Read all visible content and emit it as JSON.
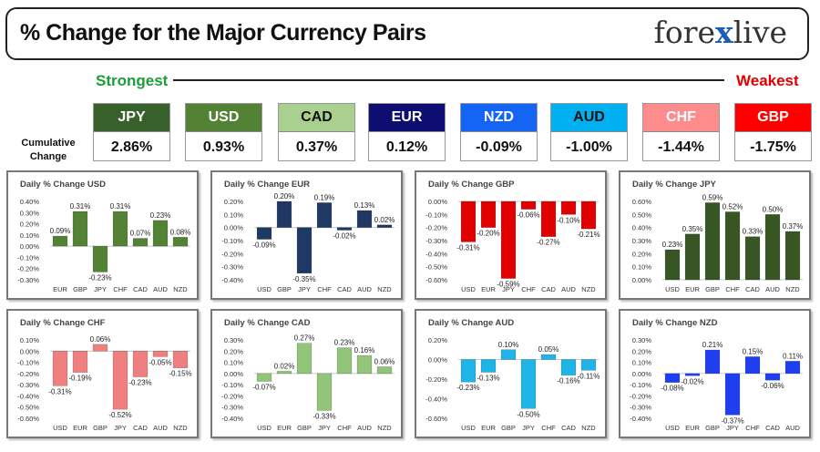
{
  "header": {
    "title": "% Change for the Major Currency Pairs",
    "logo_left": "fore",
    "logo_x": "x",
    "logo_right": "live"
  },
  "labels": {
    "strongest": "Strongest",
    "weakest": "Weakest",
    "cumulative": "Cumulative Change"
  },
  "currencies": [
    {
      "code": "JPY",
      "value": "2.86%",
      "bg": "#37602b",
      "fg": "#ffffff"
    },
    {
      "code": "USD",
      "value": "0.93%",
      "bg": "#548235",
      "fg": "#ffffff"
    },
    {
      "code": "CAD",
      "value": "0.37%",
      "bg": "#a9d08e",
      "fg": "#111111"
    },
    {
      "code": "EUR",
      "value": "0.12%",
      "bg": "#0d0d72",
      "fg": "#ffffff"
    },
    {
      "code": "NZD",
      "value": "-0.09%",
      "bg": "#1565f5",
      "fg": "#ffffff"
    },
    {
      "code": "AUD",
      "value": "-1.00%",
      "bg": "#00b0f0",
      "fg": "#111111"
    },
    {
      "code": "CHF",
      "value": "-1.44%",
      "bg": "#ff8c8c",
      "fg": "#ffffff"
    },
    {
      "code": "GBP",
      "value": "-1.75%",
      "bg": "#ff0000",
      "fg": "#ffffff"
    }
  ],
  "chart_data": [
    {
      "type": "bar",
      "title": "Daily % Change USD",
      "color": "#548235",
      "categories": [
        "EUR",
        "GBP",
        "JPY",
        "CHF",
        "CAD",
        "AUD",
        "NZD"
      ],
      "values": [
        0.09,
        0.31,
        -0.23,
        0.31,
        0.07,
        0.23,
        0.08
      ],
      "labels": [
        "0.09%",
        "0.31%",
        "-0.23%",
        "0.31%",
        "0.07%",
        "0.23%",
        "0.08%"
      ],
      "yticks": [
        0.4,
        0.3,
        0.2,
        0.1,
        0,
        -0.1,
        -0.2,
        -0.3
      ],
      "ytick_labels": [
        "0.40%",
        "0.30%",
        "0.20%",
        "0.10%",
        "0.00%",
        "-0.10%",
        "-0.20%",
        "-0.30%"
      ],
      "ylim": [
        -0.3,
        0.4
      ]
    },
    {
      "type": "bar",
      "title": "Daily % Change EUR",
      "color": "#1f3864",
      "categories": [
        "USD",
        "GBP",
        "JPY",
        "CHF",
        "CAD",
        "AUD",
        "NZD"
      ],
      "values": [
        -0.09,
        0.2,
        -0.35,
        0.19,
        -0.02,
        0.13,
        0.02
      ],
      "labels": [
        "-0.09%",
        "0.20%",
        "-0.35%",
        "0.19%",
        "-0.02%",
        "0.13%",
        "0.02%"
      ],
      "yticks": [
        0.2,
        0.1,
        0,
        -0.1,
        -0.2,
        -0.3,
        -0.4
      ],
      "ytick_labels": [
        "0.20%",
        "0.10%",
        "0.00%",
        "-0.10%",
        "-0.20%",
        "-0.30%",
        "-0.40%"
      ],
      "ylim": [
        -0.4,
        0.2
      ]
    },
    {
      "type": "bar",
      "title": "Daily % Change GBP",
      "color": "#e00000",
      "categories": [
        "USD",
        "EUR",
        "JPY",
        "CHF",
        "CAD",
        "AUD",
        "NZD"
      ],
      "values": [
        -0.31,
        -0.2,
        -0.59,
        -0.06,
        -0.27,
        -0.1,
        -0.21
      ],
      "labels": [
        "-0.31%",
        "-0.20%",
        "-0.59%",
        "-0.06%",
        "-0.27%",
        "-0.10%",
        "-0.21%"
      ],
      "yticks": [
        0,
        -0.1,
        -0.2,
        -0.3,
        -0.4,
        -0.5,
        -0.6
      ],
      "ytick_labels": [
        "0.00%",
        "-0.10%",
        "-0.20%",
        "-0.30%",
        "-0.40%",
        "-0.50%",
        "-0.60%"
      ],
      "ylim": [
        -0.6,
        0
      ]
    },
    {
      "type": "bar",
      "title": "Daily % Change JPY",
      "color": "#375623",
      "categories": [
        "USD",
        "EUR",
        "GBP",
        "CHF",
        "CAD",
        "AUD",
        "NZD"
      ],
      "values": [
        0.23,
        0.35,
        0.59,
        0.52,
        0.33,
        0.5,
        0.37
      ],
      "labels": [
        "0.23%",
        "0.35%",
        "0.59%",
        "0.52%",
        "0.33%",
        "0.50%",
        "0.37%"
      ],
      "yticks": [
        0.6,
        0.5,
        0.4,
        0.3,
        0.2,
        0.1,
        0
      ],
      "ytick_labels": [
        "0.60%",
        "0.50%",
        "0.40%",
        "0.30%",
        "0.20%",
        "0.10%",
        "0.00%"
      ],
      "ylim": [
        0,
        0.6
      ]
    },
    {
      "type": "bar",
      "title": "Daily % Change CHF",
      "color": "#f08080",
      "categories": [
        "USD",
        "EUR",
        "GBP",
        "JPY",
        "CAD",
        "AUD",
        "NZD"
      ],
      "values": [
        -0.31,
        -0.19,
        0.06,
        -0.52,
        -0.23,
        -0.05,
        -0.15
      ],
      "labels": [
        "-0.31%",
        "-0.19%",
        "0.06%",
        "-0.52%",
        "-0.23%",
        "-0.05%",
        "-0.15%"
      ],
      "yticks": [
        0.1,
        0,
        -0.1,
        -0.2,
        -0.3,
        -0.4,
        -0.5,
        -0.6
      ],
      "ytick_labels": [
        "0.10%",
        "0.00%",
        "-0.10%",
        "-0.20%",
        "-0.30%",
        "-0.40%",
        "-0.50%",
        "-0.60%"
      ],
      "ylim": [
        -0.6,
        0.1
      ]
    },
    {
      "type": "bar",
      "title": "Daily % Change CAD",
      "color": "#92c47a",
      "categories": [
        "USD",
        "EUR",
        "GBP",
        "JPY",
        "CHF",
        "AUD",
        "NZD"
      ],
      "values": [
        -0.07,
        0.02,
        0.27,
        -0.33,
        0.23,
        0.16,
        0.06
      ],
      "labels": [
        "-0.07%",
        "0.02%",
        "0.27%",
        "-0.33%",
        "0.23%",
        "0.16%",
        "0.06%"
      ],
      "yticks": [
        0.3,
        0.2,
        0.1,
        0,
        -0.1,
        -0.2,
        -0.3,
        -0.4
      ],
      "ytick_labels": [
        "0.30%",
        "0.20%",
        "0.10%",
        "0.00%",
        "-0.10%",
        "-0.20%",
        "-0.30%",
        "-0.40%"
      ],
      "ylim": [
        -0.4,
        0.3
      ]
    },
    {
      "type": "bar",
      "title": "Daily % Change AUD",
      "color": "#1fb4e8",
      "categories": [
        "USD",
        "EUR",
        "GBP",
        "JPY",
        "CHF",
        "CAD",
        "NZD"
      ],
      "values": [
        -0.23,
        -0.13,
        0.1,
        -0.5,
        0.05,
        -0.16,
        -0.11
      ],
      "labels": [
        "-0.23%",
        "-0.13%",
        "0.10%",
        "-0.50%",
        "0.05%",
        "-0.16%",
        "-0.11%"
      ],
      "yticks": [
        0.2,
        0,
        -0.2,
        -0.4,
        -0.6
      ],
      "ytick_labels": [
        "0.20%",
        "0.00%",
        "-0.20%",
        "-0.40%",
        "-0.60%"
      ],
      "ylim": [
        -0.6,
        0.2
      ]
    },
    {
      "type": "bar",
      "title": "Daily % Change NZD",
      "color": "#1f3ef0",
      "categories": [
        "USD",
        "EUR",
        "GBP",
        "JPY",
        "CHF",
        "CAD",
        "AUD"
      ],
      "values": [
        -0.08,
        -0.02,
        0.21,
        -0.37,
        0.15,
        -0.06,
        0.11
      ],
      "labels": [
        "-0.08%",
        "-0.02%",
        "0.21%",
        "-0.37%",
        "0.15%",
        "-0.06%",
        "0.11%"
      ],
      "yticks": [
        0.3,
        0.2,
        0.1,
        0,
        -0.1,
        -0.2,
        -0.3,
        -0.4
      ],
      "ytick_labels": [
        "0.30%",
        "0.20%",
        "0.10%",
        "0.00%",
        "-0.10%",
        "-0.20%",
        "-0.30%",
        "-0.40%"
      ],
      "ylim": [
        -0.4,
        0.3
      ]
    }
  ]
}
